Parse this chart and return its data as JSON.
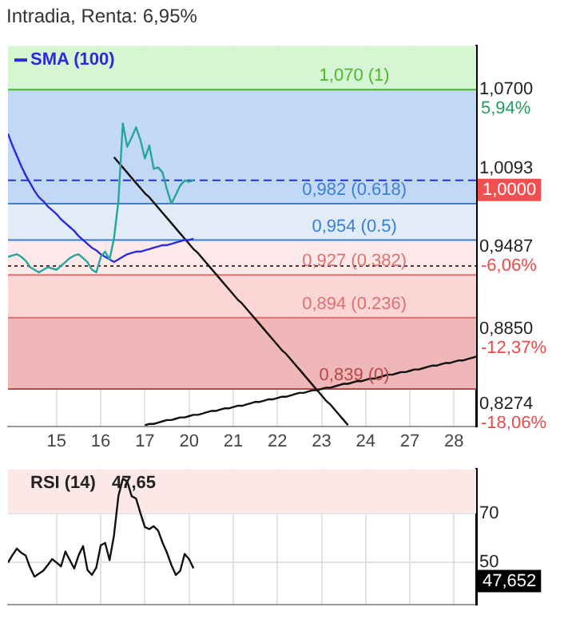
{
  "chart_data": [
    {
      "type": "line",
      "title": "Intradia, Renta: 6,95%",
      "categories": [
        null,
        null,
        null,
        null,
        null,
        null,
        null,
        null,
        null,
        null,
        null,
        "15",
        null,
        null,
        null,
        null,
        null,
        null,
        null,
        null,
        null,
        "16",
        null,
        null,
        null,
        null,
        null,
        null,
        null,
        null,
        null,
        "17",
        null,
        null,
        null,
        null,
        null,
        null,
        null,
        null,
        null,
        "20",
        null,
        null,
        null,
        null,
        null,
        null,
        null,
        null,
        null,
        "21",
        null,
        null,
        null,
        null,
        null,
        null,
        null,
        null,
        null,
        "22",
        null,
        null,
        null,
        null,
        null,
        null,
        null,
        null,
        null,
        "23",
        null,
        null,
        null,
        null,
        null,
        null,
        null,
        null,
        null,
        "24",
        null,
        null,
        null,
        null,
        null,
        null,
        null,
        null,
        null,
        "27",
        null,
        null,
        null,
        null,
        null,
        null,
        null,
        null,
        null,
        "28",
        null,
        null,
        null,
        null,
        null
      ],
      "ylim": [
        0.81,
        1.104
      ],
      "yticks": [
        {
          "value": 1.07,
          "label": "1,0700"
        },
        {
          "value": 1.0093,
          "label": "1,0093"
        },
        {
          "value": 0.9487,
          "label": "0,9487"
        },
        {
          "value": 0.885,
          "label": "0,8850"
        },
        {
          "value": 0.8274,
          "label": "0,8274"
        }
      ],
      "grid": "x",
      "legend": "top left",
      "marker": "none",
      "series": [
        {
          "color": "#26a69a",
          "values": [
            0.941,
            0.942,
            0.943,
            0.941,
            0.938,
            0.933,
            0.931,
            0.929,
            0.931,
            0.933,
            0.932,
            0.931,
            0.934,
            0.937,
            0.94,
            0.942,
            0.943,
            0.94,
            0.937,
            0.931,
            0.929,
            0.941,
            0.945,
            0.939,
            0.955,
            0.984,
            1.044,
            1.026,
            1.033,
            1.041,
            1.031,
            1.017,
            1.027,
            1.009,
            1.01,
            1.006,
            0.993,
            0.982,
            0.989,
            0.996,
            1.0,
            0.999,
            1.0,
            null,
            null,
            null,
            null,
            null,
            null,
            null,
            null,
            null,
            null,
            null,
            null,
            null,
            null,
            null,
            null,
            null,
            null,
            null,
            null,
            null,
            null,
            null,
            null,
            null,
            null,
            null,
            null,
            null,
            null,
            null,
            null,
            null,
            null,
            null,
            null,
            null,
            null,
            null,
            null,
            null,
            null,
            null,
            null,
            null,
            null,
            null,
            null,
            null,
            null,
            null,
            null,
            null,
            null,
            null,
            null,
            null,
            null,
            null,
            null,
            null,
            null,
            null,
            null
          ]
        },
        {
          "name": "SMA (100)",
          "color": "#2b2bdd",
          "values": [
            1.036,
            1.027,
            1.019,
            1.011,
            1.004,
            0.998,
            0.992,
            0.987,
            0.984,
            0.98,
            0.977,
            0.974,
            0.97,
            0.967,
            0.964,
            0.961,
            0.957,
            0.954,
            0.951,
            0.948,
            0.946,
            0.943,
            0.941,
            0.939,
            0.937,
            0.939,
            0.941,
            0.943,
            0.944,
            0.945,
            0.945,
            0.946,
            0.947,
            0.948,
            0.949,
            0.95,
            0.95,
            0.951,
            0.952,
            0.953,
            0.954,
            0.954,
            0.955,
            null,
            null,
            null,
            null,
            null,
            null,
            null,
            null,
            null,
            null,
            null,
            null,
            null,
            null,
            null,
            null,
            null,
            null,
            null,
            null,
            null,
            null,
            null,
            null,
            null,
            null,
            null,
            null,
            null,
            null,
            null,
            null,
            null,
            null,
            null,
            null,
            null,
            null,
            null,
            null,
            null,
            null,
            null,
            null,
            null,
            null,
            null,
            null,
            null,
            null,
            null,
            null,
            null,
            null,
            null,
            null,
            null,
            null,
            null,
            null,
            null,
            null,
            null,
            null
          ]
        },
        {
          "color": "#111111",
          "values": [
            null,
            null,
            null,
            null,
            null,
            null,
            null,
            null,
            null,
            null,
            null,
            null,
            null,
            null,
            null,
            null,
            null,
            null,
            null,
            null,
            null,
            null,
            null,
            null,
            1.018,
            1.014,
            1.01,
            1.006,
            1.002,
            0.998,
            0.994,
            0.99,
            0.987,
            0.983,
            0.979,
            0.975,
            0.971,
            0.967,
            0.963,
            0.959,
            0.955,
            0.951,
            0.947,
            0.944,
            0.94,
            0.936,
            0.932,
            0.928,
            0.924,
            0.92,
            0.916,
            0.912,
            0.908,
            0.905,
            0.901,
            0.897,
            0.893,
            0.889,
            0.885,
            0.881,
            0.877,
            0.873,
            0.869,
            0.866,
            0.862,
            0.858,
            0.854,
            0.85,
            0.846,
            0.842,
            0.838,
            0.834,
            0.83,
            0.827,
            0.823,
            0.819,
            0.815,
            0.811,
            null,
            null,
            null,
            null,
            null,
            null,
            null,
            null,
            null,
            null,
            null,
            null,
            null,
            null,
            null,
            null,
            null,
            null,
            null,
            null,
            null,
            null,
            null,
            null,
            null,
            null,
            null,
            null,
            null
          ]
        },
        {
          "color": "#111111",
          "values": [
            null,
            null,
            null,
            null,
            null,
            null,
            null,
            null,
            null,
            null,
            null,
            null,
            null,
            null,
            null,
            null,
            null,
            null,
            null,
            null,
            null,
            null,
            null,
            null,
            null,
            null,
            null,
            null,
            null,
            null,
            null,
            0.811,
            0.812,
            0.812,
            0.813,
            0.814,
            0.815,
            0.815,
            0.816,
            0.817,
            0.817,
            0.818,
            0.819,
            0.819,
            0.82,
            0.821,
            0.822,
            0.822,
            0.823,
            0.824,
            0.824,
            0.825,
            0.826,
            0.826,
            0.827,
            0.828,
            0.829,
            0.829,
            0.83,
            0.831,
            0.831,
            0.832,
            0.833,
            0.833,
            0.834,
            0.835,
            0.836,
            0.836,
            0.837,
            0.838,
            0.838,
            0.839,
            0.84,
            0.84,
            0.841,
            0.842,
            0.843,
            0.843,
            0.844,
            0.845,
            0.845,
            0.846,
            0.847,
            0.847,
            0.848,
            0.849,
            0.85,
            0.85,
            0.851,
            0.852,
            0.852,
            0.853,
            0.854,
            0.854,
            0.855,
            0.856,
            0.857,
            0.857,
            0.858,
            0.859,
            0.859,
            0.86,
            0.861,
            0.861,
            0.862,
            0.863,
            0.864
          ]
        }
      ],
      "bands": [
        {
          "axis": "y",
          "from": 1.07,
          "to": 1.104,
          "color": "#d6f5d3"
        },
        {
          "axis": "y",
          "from": 0.982,
          "to": 1.07,
          "color": "#c2d8f7"
        },
        {
          "axis": "y",
          "from": 0.954,
          "to": 0.982,
          "color": "#e2ecf8"
        },
        {
          "axis": "y",
          "from": 0.927,
          "to": 0.954,
          "color": "#fde9e9"
        },
        {
          "axis": "y",
          "from": 0.894,
          "to": 0.927,
          "color": "#fcd5d5"
        },
        {
          "axis": "y",
          "from": 0.839,
          "to": 0.894,
          "color": "#efb7b7"
        }
      ],
      "ref_lines": [
        {
          "axis": "y",
          "value": 1.07,
          "label": "1,070 (1)",
          "color": "#4cb82a"
        },
        {
          "axis": "y",
          "value": 0.982,
          "label": "0,982 (0.618)",
          "color": "#3a7fd5"
        },
        {
          "axis": "y",
          "value": 0.954,
          "label": "0,954 (0.5)",
          "color": "#3a7fd5"
        },
        {
          "axis": "y",
          "value": 0.927,
          "label": "0,927 (0.382)",
          "color": "#e07070"
        },
        {
          "axis": "y",
          "value": 0.894,
          "label": "0,894 (0.236)",
          "color": "#e07070"
        },
        {
          "axis": "y",
          "value": 0.839,
          "label": "0,839 (0)",
          "color": "#b84848"
        },
        {
          "axis": "y",
          "value": 1.0,
          "label": "1,0000",
          "color": "#2233dd",
          "line_style": "dashed"
        },
        {
          "axis": "y",
          "value": 0.934,
          "color": "#553333",
          "line_style": "dotted"
        }
      ],
      "annotations": [
        "5,94%",
        "-6,06%",
        "-12,37%",
        "-18,06%"
      ]
    },
    {
      "type": "line",
      "title": "RSI (14)",
      "subtitle": "47,65",
      "categories": [
        null,
        null,
        null,
        null,
        null,
        null,
        null,
        null,
        null,
        null,
        null,
        "15",
        null,
        null,
        null,
        null,
        null,
        null,
        null,
        null,
        null,
        "16",
        null,
        null,
        null,
        null,
        null,
        null,
        null,
        null,
        null,
        "17",
        null,
        null,
        null,
        null,
        null,
        null,
        null,
        null,
        null,
        "20",
        null,
        null,
        null,
        null,
        null,
        null,
        null,
        null,
        null,
        "21",
        null,
        null,
        null,
        null,
        null,
        null,
        null,
        null,
        null,
        "22",
        null,
        null,
        null,
        null,
        null,
        null,
        null,
        null,
        null,
        "23",
        null,
        null,
        null,
        null,
        null,
        null,
        null,
        null,
        null,
        "24",
        null,
        null,
        null,
        null,
        null,
        null,
        null,
        null,
        null,
        "27",
        null,
        null,
        null,
        null,
        null,
        null,
        null,
        null,
        null,
        "28",
        null,
        null,
        null,
        null,
        null
      ],
      "ylim": [
        33,
        88
      ],
      "yticks": [
        50,
        70
      ],
      "tick_labels": "y",
      "grid": true,
      "marker": "none",
      "series": [
        {
          "color": "#111111",
          "values": [
            50,
            53,
            55.7,
            54,
            52.9,
            48,
            44.3,
            45.5,
            46.7,
            49,
            51.4,
            50,
            48.5,
            54.5,
            51,
            47.6,
            53,
            56.7,
            47,
            45,
            48,
            57,
            58,
            51,
            61,
            77,
            84,
            83,
            77,
            76,
            70,
            64.4,
            63.6,
            64.8,
            63,
            58.1,
            54,
            49,
            45,
            46.7,
            53.5,
            51.4,
            47.7,
            null,
            null,
            null,
            null,
            null,
            null,
            null,
            null,
            null,
            null,
            null,
            null,
            null,
            null,
            null,
            null,
            null,
            null,
            null,
            null,
            null,
            null,
            null,
            null,
            null,
            null,
            null,
            null,
            null,
            null,
            null,
            null,
            null,
            null,
            null,
            null,
            null,
            null,
            null,
            null,
            null,
            null,
            null,
            null,
            null,
            null,
            null,
            null,
            null,
            null,
            null,
            null,
            null,
            null,
            null,
            null,
            null,
            null,
            null,
            null,
            null,
            null,
            null,
            null
          ]
        }
      ],
      "bands": [
        {
          "axis": "y",
          "from": 70,
          "to": 88,
          "color": "#fde8e8"
        }
      ],
      "annotations": [
        "47,652"
      ]
    }
  ]
}
